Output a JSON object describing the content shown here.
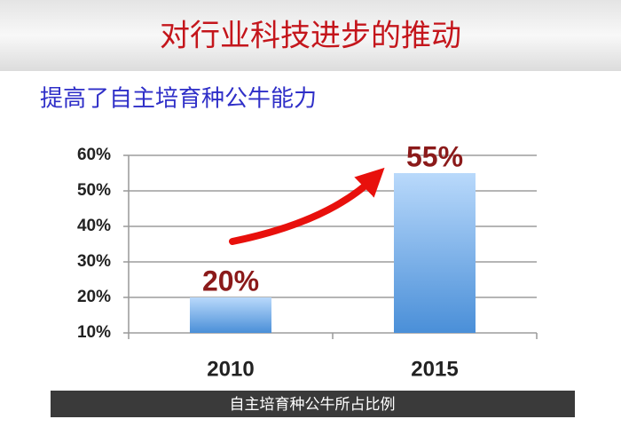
{
  "title": "对行业科技进步的推动",
  "subtitle": "提高了自主培育种公牛能力",
  "chart_data": {
    "type": "bar",
    "categories": [
      "2010",
      "2015"
    ],
    "values": [
      20,
      55
    ],
    "value_labels": [
      "20%",
      "55%"
    ],
    "color": "#4a8fd8",
    "x_label": "自主培育种公牛所占比例",
    "ylim": [
      10,
      60
    ],
    "yticks": [
      {
        "value": 10,
        "label": "10%"
      },
      {
        "value": 20,
        "label": "20%"
      },
      {
        "value": 30,
        "label": "30%"
      },
      {
        "value": 40,
        "label": "40%"
      },
      {
        "value": 50,
        "label": "50%"
      },
      {
        "value": 60,
        "label": "60%"
      }
    ],
    "grid": true
  }
}
